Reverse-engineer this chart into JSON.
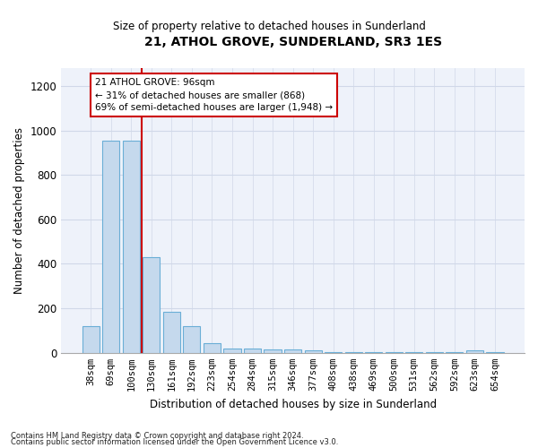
{
  "title": "21, ATHOL GROVE, SUNDERLAND, SR3 1ES",
  "subtitle": "Size of property relative to detached houses in Sunderland",
  "xlabel": "Distribution of detached houses by size in Sunderland",
  "ylabel": "Number of detached properties",
  "footnote1": "Contains HM Land Registry data © Crown copyright and database right 2024.",
  "footnote2": "Contains public sector information licensed under the Open Government Licence v3.0.",
  "categories": [
    "38sqm",
    "69sqm",
    "100sqm",
    "130sqm",
    "161sqm",
    "192sqm",
    "223sqm",
    "254sqm",
    "284sqm",
    "315sqm",
    "346sqm",
    "377sqm",
    "408sqm",
    "438sqm",
    "469sqm",
    "500sqm",
    "531sqm",
    "562sqm",
    "592sqm",
    "623sqm",
    "654sqm"
  ],
  "values": [
    120,
    955,
    955,
    430,
    185,
    120,
    45,
    20,
    20,
    15,
    15,
    10,
    5,
    5,
    3,
    3,
    3,
    3,
    3,
    10,
    3
  ],
  "bar_color": "#c5d9ed",
  "bar_edge_color": "#6aaed6",
  "bar_width": 0.85,
  "property_line_x": 2.5,
  "property_sqm": "96sqm",
  "pct_smaller": 31,
  "n_smaller": 868,
  "pct_larger_semi": 69,
  "n_larger_semi": 1948,
  "annotation_box_color": "#cc0000",
  "annotation_text_color": "#000000",
  "grid_color": "#d0d8e8",
  "background_color": "#eef2fa",
  "ylim": [
    0,
    1280
  ],
  "yticks": [
    0,
    200,
    400,
    600,
    800,
    1000,
    1200
  ]
}
